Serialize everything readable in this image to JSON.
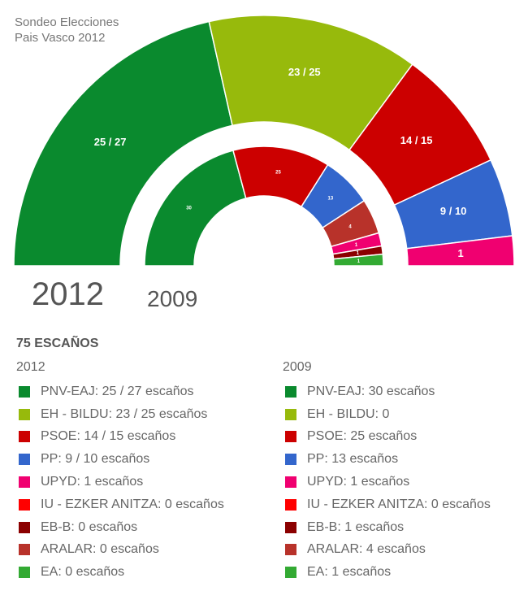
{
  "title_lines": [
    "Sondeo Elecciones",
    "Pais Vasco 2012"
  ],
  "year_labels": {
    "outer": "2012",
    "inner": "2009"
  },
  "total_label": "75 ESCAÑOS",
  "legend": {
    "col_2012": {
      "header": "2012",
      "items": [
        {
          "party": "PNV-EAJ",
          "text": "PNV-EAJ: 25 / 27 escaños",
          "color": "#0a8a2e"
        },
        {
          "party": "EH - BILDU",
          "text": "EH - BILDU: 23 / 25 escaños",
          "color": "#97ba0c"
        },
        {
          "party": "PSOE",
          "text": "PSOE: 14 / 15 escaños",
          "color": "#cc0000"
        },
        {
          "party": "PP",
          "text": "PP: 9 / 10 escaños",
          "color": "#3366cc"
        },
        {
          "party": "UPYD",
          "text": "UPYD: 1 escaños",
          "color": "#f00070"
        },
        {
          "party": "IU - EZKER ANITZA",
          "text": "IU - EZKER ANITZA: 0 escaños",
          "color": "#ff0000"
        },
        {
          "party": "EB-B",
          "text": "EB-B: 0 escaños",
          "color": "#8b0000"
        },
        {
          "party": "ARALAR",
          "text": "ARALAR: 0 escaños",
          "color": "#b8322a"
        },
        {
          "party": "EA",
          "text": "EA: 0 escaños",
          "color": "#33aa33"
        }
      ]
    },
    "col_2009": {
      "header": "2009",
      "items": [
        {
          "party": "PNV-EAJ",
          "text": "PNV-EAJ: 30 escaños",
          "color": "#0a8a2e"
        },
        {
          "party": "EH - BILDU",
          "text": "EH - BILDU: 0",
          "color": "#97ba0c"
        },
        {
          "party": "PSOE",
          "text": "PSOE: 25 escaños",
          "color": "#cc0000"
        },
        {
          "party": "PP",
          "text": "PP: 13 escaños",
          "color": "#3366cc"
        },
        {
          "party": "UPYD",
          "text": "UPYD: 1 escaños",
          "color": "#f00070"
        },
        {
          "party": "IU - EZKER ANITZA",
          "text": "IU - EZKER ANITZA: 0 escaños",
          "color": "#ff0000"
        },
        {
          "party": "EB-B",
          "text": "EB-B: 1 escaños",
          "color": "#8b0000"
        },
        {
          "party": "ARALAR",
          "text": "ARALAR: 4 escaños",
          "color": "#b8322a"
        },
        {
          "party": "EA",
          "text": "EA: 1 escaños",
          "color": "#33aa33"
        }
      ]
    }
  },
  "chart_data": {
    "type": "pie",
    "subtype": "semicircle-donut (parliament)",
    "title": "Sondeo Elecciones Pais Vasco 2012",
    "total_seats": 75,
    "series": [
      {
        "name": "2012",
        "ring": "outer",
        "categories": [
          "PNV-EAJ",
          "EH - BILDU",
          "PSOE",
          "PP",
          "UPYD"
        ],
        "values_low": [
          25,
          23,
          14,
          9,
          1
        ],
        "values_high": [
          27,
          25,
          15,
          10,
          1
        ],
        "labels": [
          "25 / 27",
          "23 / 25",
          "14 / 15",
          "9 / 10",
          "1"
        ],
        "colors": [
          "#0a8a2e",
          "#97ba0c",
          "#cc0000",
          "#3366cc",
          "#f00070"
        ],
        "angles_deg": [
          180,
          102.7,
          53.6,
          25,
          6.9,
          0
        ]
      },
      {
        "name": "2009",
        "ring": "inner",
        "categories": [
          "PNV-EAJ",
          "PSOE",
          "PP",
          "ARALAR",
          "UPYD",
          "EB-B",
          "EA"
        ],
        "values": [
          30,
          25,
          13,
          4,
          1,
          1,
          1
        ],
        "labels": [
          "30",
          "25",
          "13",
          "4",
          "1",
          "1",
          "1"
        ],
        "colors": [
          "#0a8a2e",
          "#cc0000",
          "#3366cc",
          "#b8322a",
          "#f00070",
          "#8b0000",
          "#33aa33"
        ],
        "angles_deg": [
          180,
          105,
          57.7,
          33,
          16,
          9.6,
          5.6,
          0
        ]
      }
    ],
    "legend_position": "bottom, two columns (2012 | 2009)",
    "grid": false
  }
}
